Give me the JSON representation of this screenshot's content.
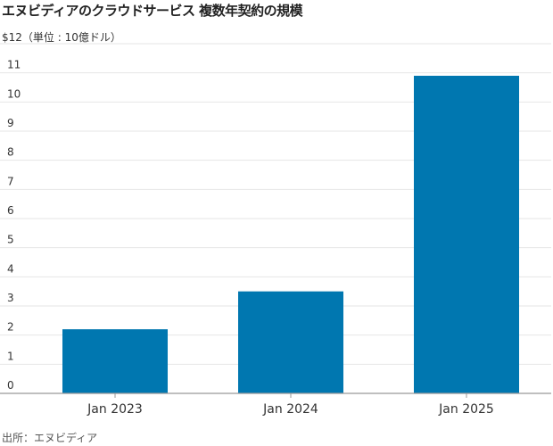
{
  "chart_data": {
    "type": "bar",
    "title": "エヌビディアのクラウドサービス 複数年契約の規模",
    "unit_label": "$12（単位 : 10億ドル）",
    "categories": [
      "Jan 2023",
      "Jan 2024",
      "Jan 2025"
    ],
    "values": [
      2.2,
      3.5,
      10.9
    ],
    "y_ticks": [
      "0",
      "1",
      "2",
      "3",
      "4",
      "5",
      "6",
      "7",
      "8",
      "9",
      "10",
      "11"
    ],
    "ylim": [
      0,
      12
    ],
    "grid": true,
    "bar_color": "#0077b0",
    "grid_color": "#e6e6e6",
    "axis_color": "#999999",
    "source": "出所：エヌビディア"
  }
}
